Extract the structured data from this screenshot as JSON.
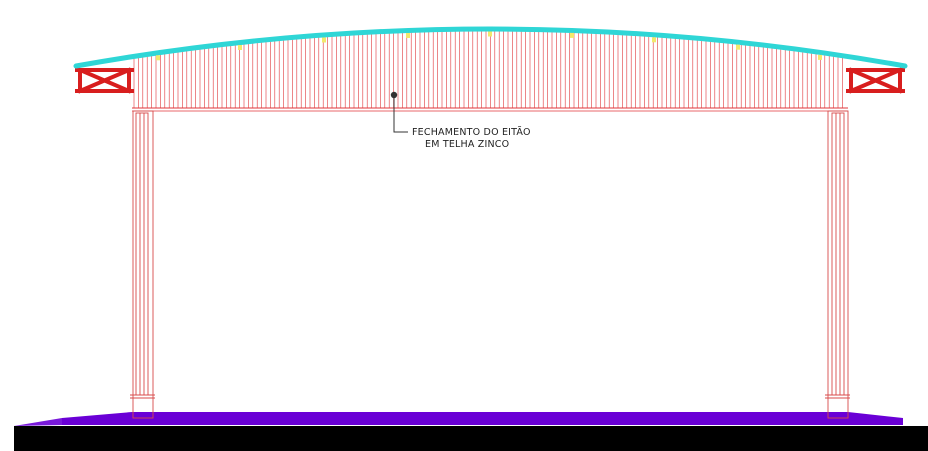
{
  "annotation": {
    "line1": "FECHAMENTO DO EITÃO",
    "line2": "EM TELHA ZINCO"
  },
  "colors": {
    "background": "#ffffff",
    "roof_arc": "#2fd6d6",
    "cladding_lines": "#e0353a",
    "truss": "#d81e1e",
    "purlin_marks": "#f2e96b",
    "floor_slab": "#6a00d6",
    "ground": "#000000",
    "columns": "#d84a4a",
    "leader": "#333333"
  },
  "icons": {
    "truss_left": "x-brace-truss",
    "truss_right": "x-brace-truss",
    "leader_dot": "filled-circle"
  }
}
